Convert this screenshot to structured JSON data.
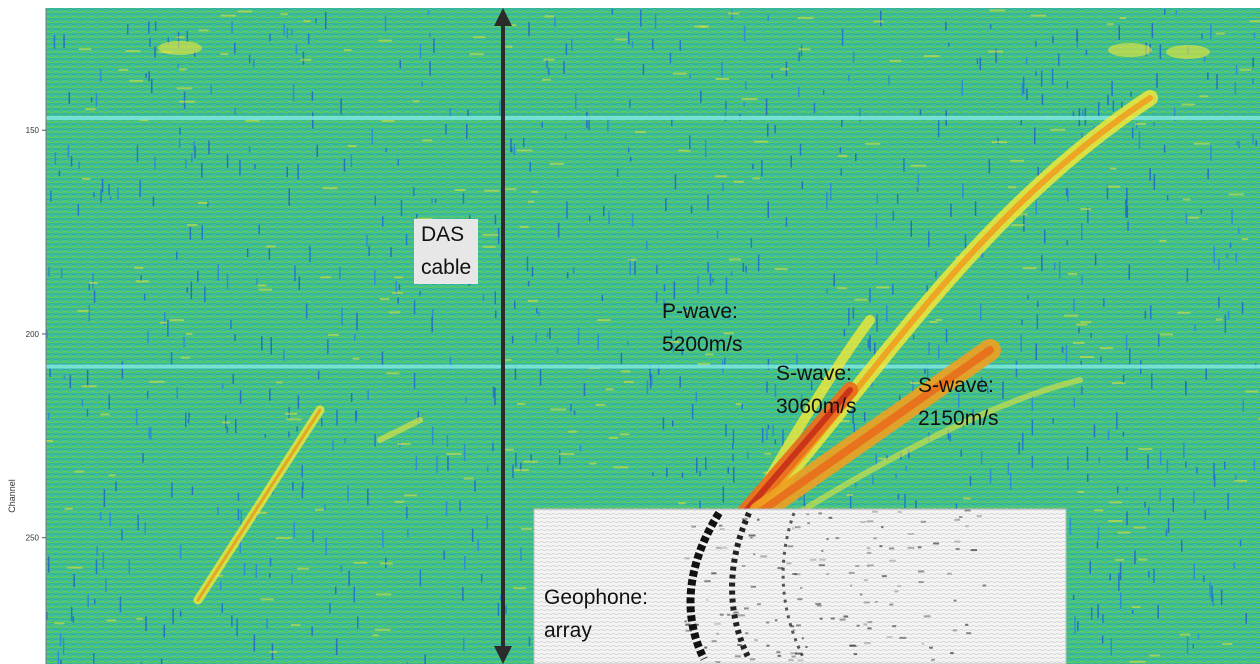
{
  "chart_data": {
    "type": "heatmap",
    "ylabel": "Channel",
    "yticks": [
      150,
      200,
      250
    ],
    "ylim": [
      120,
      281
    ],
    "annotations": {
      "das": [
        "DAS",
        "cable"
      ],
      "pwave": [
        "P-wave:",
        "5200m/s"
      ],
      "swave1": [
        "S-wave:",
        "3060m/s"
      ],
      "swave2": [
        "S-wave:",
        "2150m/s"
      ],
      "geophone": [
        "Geophone:",
        "array"
      ]
    },
    "colormap": [
      "#1a7fd6",
      "#27b4b0",
      "#5ac86e",
      "#f2e83a",
      "#f0a020",
      "#d8461c"
    ],
    "background_color": "#3bbf9c",
    "inset": {
      "description_label": "Geophone: array"
    }
  }
}
